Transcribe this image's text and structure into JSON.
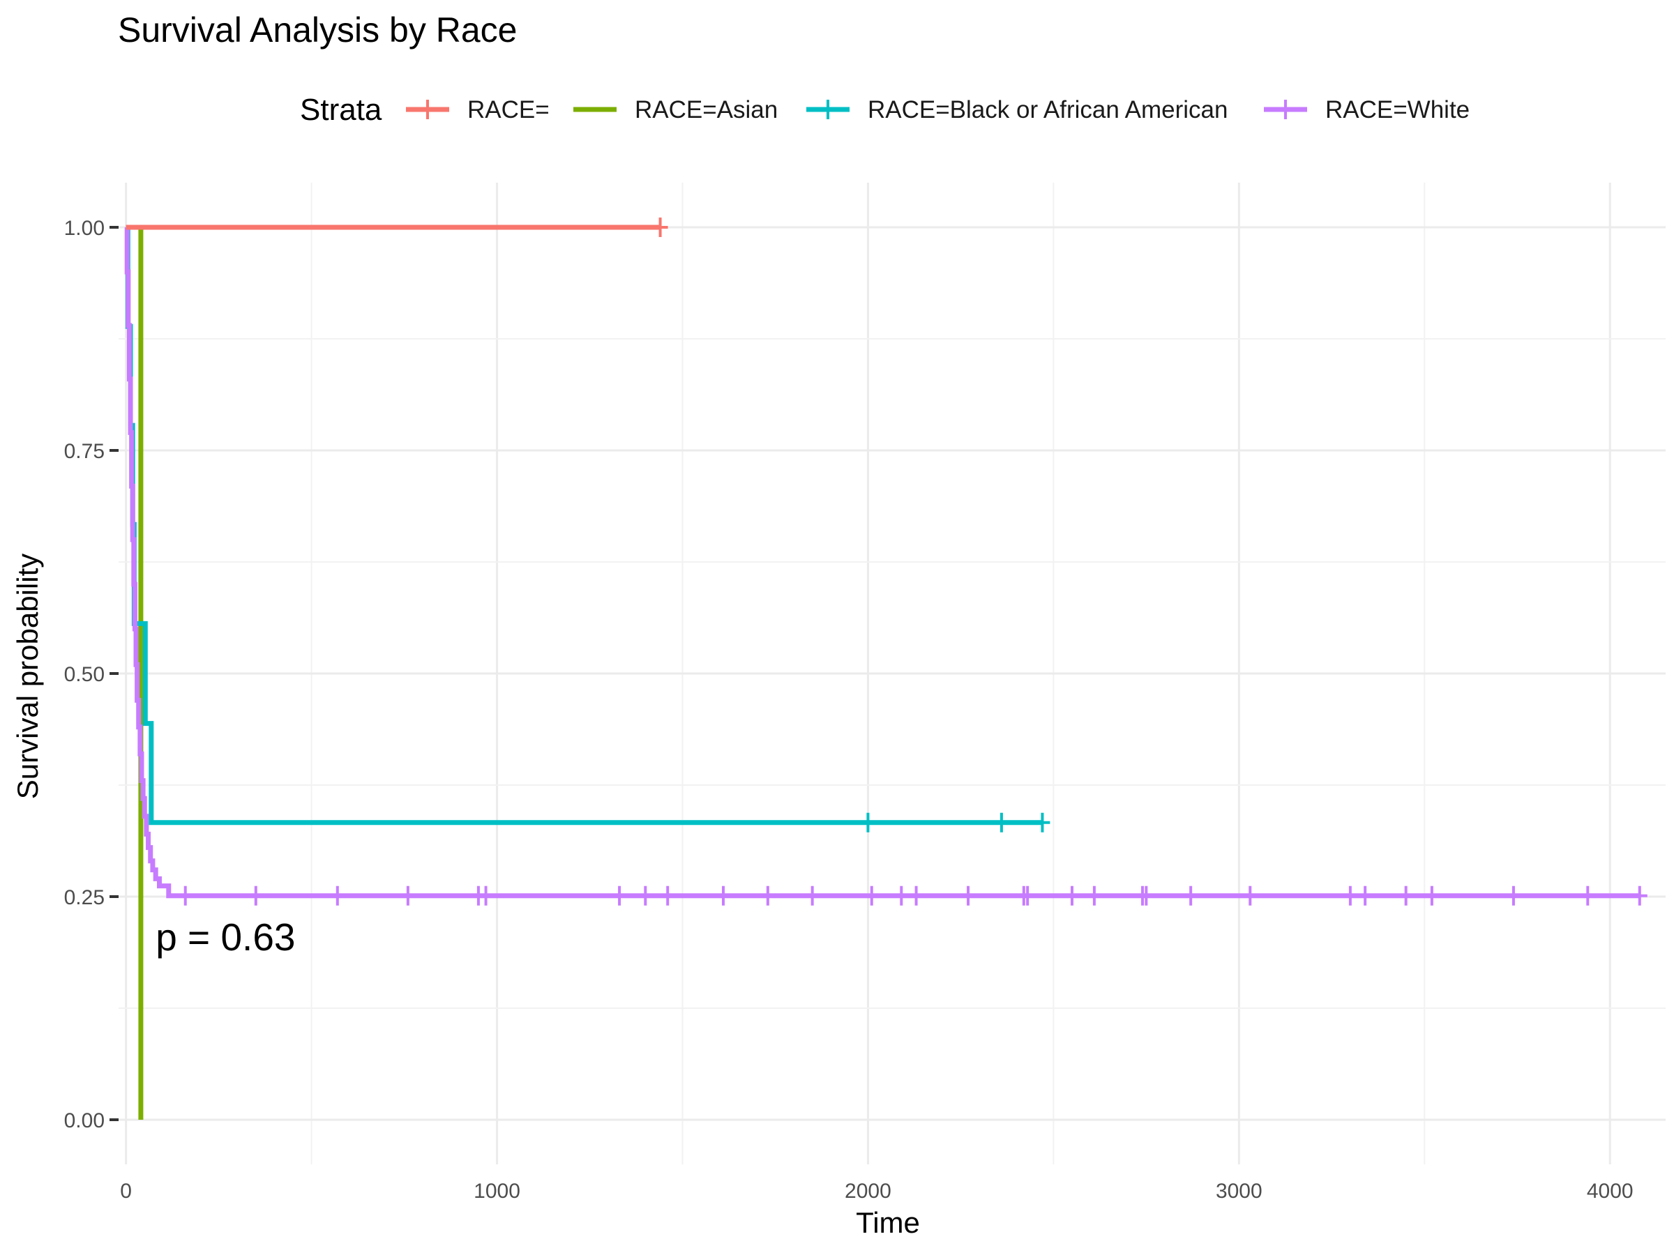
{
  "chart_data": {
    "type": "line",
    "title": "Survival Analysis by Race",
    "xlabel": "Time",
    "ylabel": "Survival probability",
    "xlim": [
      -20,
      4150
    ],
    "ylim": [
      -0.05,
      1.05
    ],
    "x_ticks": [
      0,
      1000,
      2000,
      3000,
      4000
    ],
    "x_tick_labels": [
      "0",
      "1000",
      "2000",
      "3000",
      "4000"
    ],
    "y_ticks": [
      0,
      0.25,
      0.5,
      0.75,
      1
    ],
    "y_tick_labels": [
      "0.00",
      "0.25",
      "0.50",
      "0.75",
      "1.00"
    ],
    "grid": true,
    "legend": {
      "title": "Strata",
      "position": "top"
    },
    "annotation": {
      "text": "p = 0.63",
      "x": 80,
      "y": 0.19
    },
    "series": [
      {
        "name": "RACE=",
        "color": "#F8766D",
        "steps": [
          [
            0,
            1.0
          ],
          [
            1440,
            1.0
          ]
        ],
        "censor_times": [
          1440
        ],
        "censor_y": 1.0
      },
      {
        "name": "RACE=Asian",
        "color": "#7CAE00",
        "steps": [
          [
            0,
            1.0
          ],
          [
            40,
            0.0
          ]
        ],
        "censor_times": [],
        "censor_y": 0.0
      },
      {
        "name": "RACE=Black or African American",
        "color": "#00BFC4",
        "steps": [
          [
            0,
            1.0
          ],
          [
            5,
            0.889
          ],
          [
            12,
            0.778
          ],
          [
            18,
            0.667
          ],
          [
            22,
            0.556
          ],
          [
            50,
            0.556
          ],
          [
            52,
            0.444
          ],
          [
            65,
            0.444
          ],
          [
            68,
            0.333
          ],
          [
            2470,
            0.333
          ]
        ],
        "censor_times": [
          2000,
          2360,
          2470
        ],
        "censor_y": 0.333
      },
      {
        "name": "RACE=White",
        "color": "#C77CFF",
        "steps": [
          [
            0,
            1.0
          ],
          [
            3,
            0.95
          ],
          [
            6,
            0.89
          ],
          [
            9,
            0.83
          ],
          [
            12,
            0.77
          ],
          [
            15,
            0.71
          ],
          [
            18,
            0.65
          ],
          [
            21,
            0.6
          ],
          [
            24,
            0.55
          ],
          [
            27,
            0.51
          ],
          [
            30,
            0.47
          ],
          [
            34,
            0.44
          ],
          [
            38,
            0.41
          ],
          [
            42,
            0.38
          ],
          [
            46,
            0.36
          ],
          [
            50,
            0.34
          ],
          [
            55,
            0.32
          ],
          [
            60,
            0.305
          ],
          [
            66,
            0.29
          ],
          [
            72,
            0.28
          ],
          [
            80,
            0.27
          ],
          [
            90,
            0.262
          ],
          [
            110,
            0.262
          ],
          [
            115,
            0.251
          ],
          [
            4080,
            0.251
          ]
        ],
        "censor_times": [
          160,
          350,
          570,
          760,
          950,
          970,
          1330,
          1400,
          1460,
          1610,
          1730,
          1850,
          2010,
          2090,
          2130,
          2270,
          2420,
          2430,
          2550,
          2610,
          2740,
          2750,
          2870,
          3030,
          3300,
          3340,
          3450,
          3520,
          3740,
          3940,
          4080
        ],
        "censor_y": 0.251
      }
    ]
  }
}
